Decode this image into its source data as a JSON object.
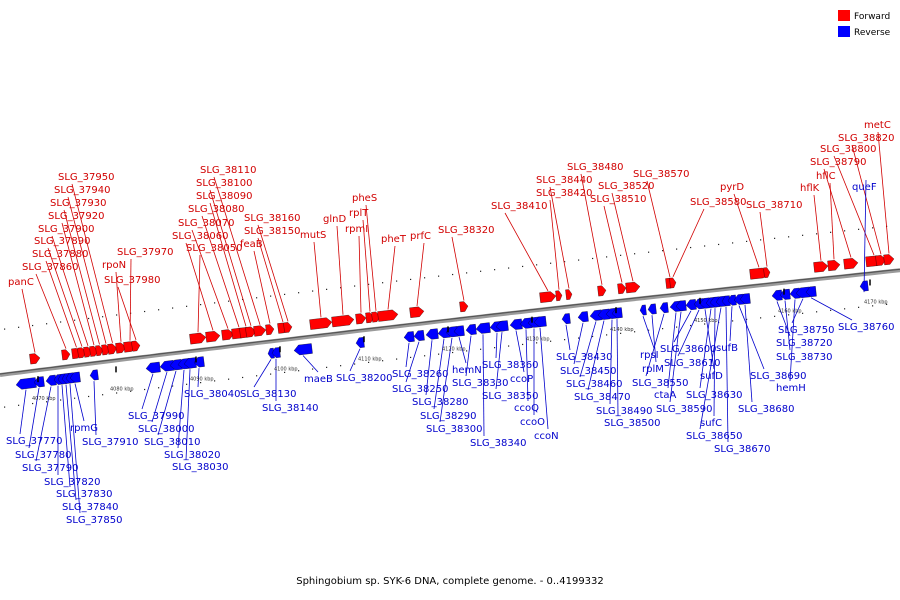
{
  "colors": {
    "forward": "#ff0000",
    "reverse": "#0000ff",
    "backbone": "#808080"
  },
  "legend": {
    "forward": "Forward",
    "reverse": "Reverse"
  },
  "caption": "Sphingobium sp. SYK-6 DNA, complete genome. - 0..4199332",
  "scale_ticks": [
    "4070 kbp",
    "4080 kbp",
    "4090 kbp",
    "4100 kbp",
    "4110 kbp",
    "4120 kbp",
    "4130 kbp",
    "4140 kbp",
    "4150 kbp",
    "4160 kbp",
    "4170 kbp"
  ],
  "forward_genes": [
    "panC",
    "SLG_37860",
    "SLG_37880",
    "SLG_37890",
    "SLG_37900",
    "SLG_37920",
    "SLG_37930",
    "SLG_37940",
    "SLG_37950",
    "rpoN",
    "SLG_37970",
    "SLG_37980",
    "SLG_38050",
    "SLG_38060",
    "SLG_38070",
    "SLG_38080",
    "SLG_38090",
    "SLG_38100",
    "SLG_38110",
    "feaB",
    "SLG_38150",
    "SLG_38160",
    "mutS",
    "glnD",
    "rpmI",
    "rplT",
    "pheS",
    "pheT",
    "prfC",
    "SLG_38320",
    "SLG_38410",
    "SLG_38420",
    "SLG_38440",
    "SLG_38480",
    "SLG_38510",
    "SLG_38520",
    "SLG_38570",
    "SLG_38580",
    "pyrD",
    "SLG_38710",
    "hflK",
    "hflC",
    "SLG_38790",
    "SLG_38800",
    "SLG_38820",
    "metC"
  ],
  "reverse_genes": [
    "SLG_37770",
    "SLG_37780",
    "SLG_37790",
    "SLG_37820",
    "SLG_37830",
    "SLG_37840",
    "SLG_37850",
    "rpmG",
    "SLG_37910",
    "SLG_37990",
    "SLG_38000",
    "SLG_38010",
    "SLG_38020",
    "SLG_38030",
    "SLG_38040",
    "SLG_38130",
    "SLG_38140",
    "maeB",
    "SLG_38200",
    "SLG_38260",
    "SLG_38250",
    "SLG_38280",
    "SLG_38290",
    "SLG_38300",
    "SLG_38340",
    "hemN",
    "SLG_38330",
    "SLG_38360",
    "SLG_38350",
    "ccoP",
    "ccoQ",
    "ccoO",
    "ccoN",
    "SLG_38430",
    "SLG_38450",
    "SLG_38460",
    "SLG_38470",
    "SLG_38490",
    "SLG_38500",
    "rpsI",
    "rplM",
    "SLG_38550",
    "ctaA",
    "SLG_38590",
    "SLG_38600",
    "SLG_38610",
    "sufD",
    "SLG_38630",
    "sufC",
    "SLG_38650",
    "SLG_38670",
    "sufB",
    "SLG_38690",
    "SLG_38680",
    "SLG_38720",
    "SLG_38730",
    "hemH",
    "SLG_38750",
    "SLG_38760",
    "queF"
  ]
}
